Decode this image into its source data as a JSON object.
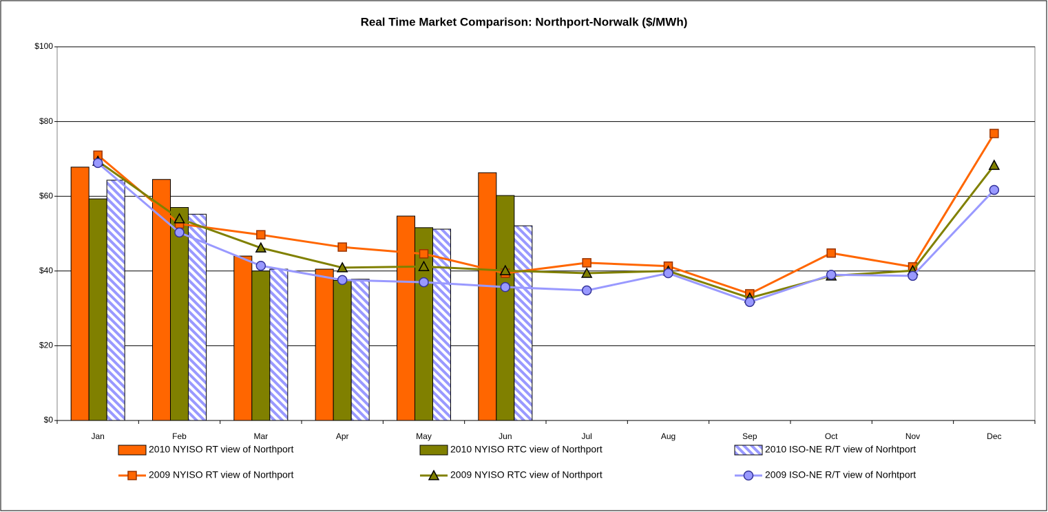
{
  "chart_data": {
    "type": "bar",
    "title": "Real Time Market Comparison: Northport-Norwalk ($/MWh)",
    "categories": [
      "Jan",
      "Feb",
      "Mar",
      "Apr",
      "May",
      "Jun",
      "Jul",
      "Aug",
      "Sep",
      "Oct",
      "Nov",
      "Dec"
    ],
    "ylim": [
      0,
      100
    ],
    "yticks": [
      {
        "value": 0,
        "label": "$0"
      },
      {
        "value": 20,
        "label": "$20"
      },
      {
        "value": 40,
        "label": "$40"
      },
      {
        "value": 60,
        "label": "$60"
      },
      {
        "value": 80,
        "label": "$80"
      },
      {
        "value": 100,
        "label": "$100"
      }
    ],
    "grid": true,
    "legend": "bottom",
    "series": [
      {
        "name": "2010 NYISO RT view of Northport",
        "type": "bar",
        "color": "#ff6600",
        "values": [
          67.8,
          64.5,
          44.0,
          40.5,
          54.7,
          66.3,
          null,
          null,
          null,
          null,
          null,
          null
        ]
      },
      {
        "name": "2010 NYISO RTC view of Northport",
        "type": "bar",
        "color": "#808000",
        "values": [
          59.3,
          57.0,
          40.0,
          37.5,
          51.6,
          60.2,
          null,
          null,
          null,
          null,
          null,
          null
        ]
      },
      {
        "name": "2010 ISO-NE R/T view of Norhtport",
        "type": "bar",
        "color": "#9999ff",
        "hatch": true,
        "values": [
          64.3,
          55.2,
          40.5,
          37.8,
          51.2,
          52.1,
          null,
          null,
          null,
          null,
          null,
          null
        ]
      },
      {
        "name": "2009 NYISO RT view of Northport",
        "type": "line",
        "color": "#ff6600",
        "marker": "square",
        "marker_edge": "#993300",
        "values": [
          71.0,
          52.6,
          49.7,
          46.4,
          44.6,
          39.4,
          42.2,
          41.3,
          33.9,
          44.8,
          41.1,
          76.8
        ]
      },
      {
        "name": "2009 NYISO RTC view of Northport",
        "type": "line",
        "color": "#808000",
        "marker": "triangle",
        "marker_edge": "#000000",
        "values": [
          69.4,
          54.0,
          46.2,
          40.9,
          41.2,
          40.1,
          39.4,
          40.0,
          32.8,
          38.7,
          40.1,
          68.3
        ]
      },
      {
        "name": "2009 ISO-NE R/T view of Norhtport",
        "type": "line",
        "color": "#9999ff",
        "marker": "circle",
        "marker_edge": "#333399",
        "values": [
          68.9,
          50.3,
          41.4,
          37.6,
          37.0,
          35.7,
          34.8,
          39.4,
          31.7,
          39.0,
          38.7,
          61.7
        ]
      }
    ]
  }
}
